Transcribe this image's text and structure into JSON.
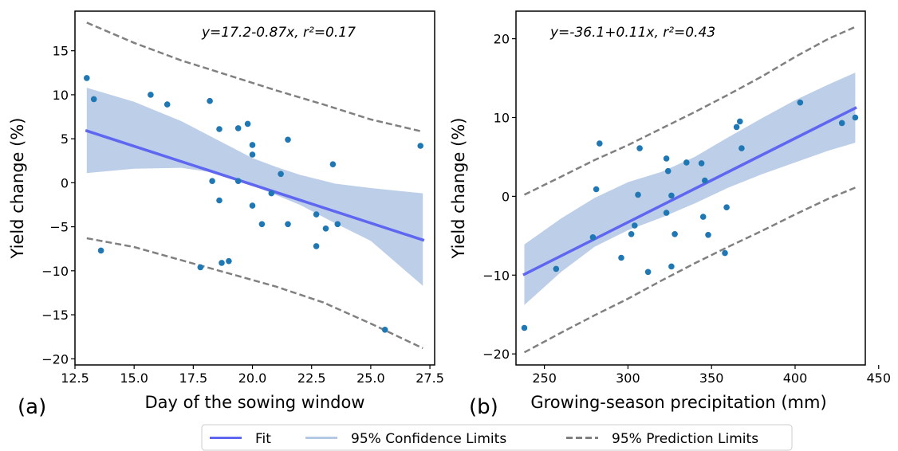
{
  "colors": {
    "fit": "#5f67f0",
    "ci_fill": "#b5c9e6",
    "pred": "#808080",
    "points": "#1f77b4",
    "axis": "#000000"
  },
  "legend": {
    "fit": "Fit",
    "confidence": "95% Confidence Limits",
    "prediction": "95% Prediction Limits"
  },
  "chart_data": [
    {
      "type": "scatter",
      "panel_label": "(a)",
      "equation": "y=17.2-0.87x, r²=0.17",
      "xlabel": "Day of the sowing window",
      "ylabel": "Yield change (%)",
      "xlim": [
        12.5,
        27.7
      ],
      "ylim": [
        -20.7,
        19.5
      ],
      "xticks": [
        12.5,
        15.0,
        17.5,
        20.0,
        22.5,
        25.0,
        27.5
      ],
      "xtick_labels": [
        "12.5",
        "15.0",
        "17.5",
        "20.0",
        "22.5",
        "25.0",
        "27.5"
      ],
      "yticks": [
        -20,
        -15,
        -10,
        -5,
        0,
        5,
        10,
        15
      ],
      "ytick_labels": [
        "−20",
        "−15",
        "−10",
        "−5",
        "0",
        "5",
        "10",
        "15"
      ],
      "fit": {
        "x": [
          13.0,
          27.2
        ],
        "y": [
          5.9,
          -6.5
        ]
      },
      "confidence": {
        "x": [
          13.0,
          15.0,
          17.0,
          18.5,
          20.0,
          21.0,
          22.0,
          23.5,
          25.0,
          27.2
        ],
        "upper": [
          10.8,
          9.2,
          7.0,
          4.9,
          2.8,
          1.8,
          0.9,
          -0.1,
          -0.6,
          -1.2
        ],
        "lower": [
          1.1,
          1.6,
          1.7,
          1.1,
          -0.3,
          -1.4,
          -2.5,
          -4.6,
          -6.6,
          -11.7
        ]
      },
      "prediction": {
        "x": [
          13.0,
          15.0,
          17.0,
          19.0,
          21.0,
          23.0,
          25.0,
          27.2
        ],
        "upper": [
          18.2,
          15.9,
          13.9,
          12.2,
          10.5,
          8.9,
          7.2,
          5.8
        ],
        "lower": [
          -6.3,
          -7.3,
          -8.8,
          -10.3,
          -11.8,
          -13.6,
          -16.0,
          -18.8
        ]
      },
      "points": [
        [
          13.0,
          11.9
        ],
        [
          13.3,
          9.5
        ],
        [
          13.6,
          -7.7
        ],
        [
          15.7,
          10.0
        ],
        [
          16.4,
          8.9
        ],
        [
          17.8,
          -9.6
        ],
        [
          18.2,
          9.3
        ],
        [
          18.3,
          0.2
        ],
        [
          18.6,
          6.1
        ],
        [
          18.6,
          -2.0
        ],
        [
          18.7,
          -9.1
        ],
        [
          19.0,
          -8.9
        ],
        [
          19.4,
          6.2
        ],
        [
          19.4,
          0.2
        ],
        [
          19.8,
          6.7
        ],
        [
          20.0,
          4.3
        ],
        [
          20.0,
          3.2
        ],
        [
          20.0,
          -2.6
        ],
        [
          20.4,
          -4.7
        ],
        [
          20.8,
          -1.2
        ],
        [
          21.2,
          1.0
        ],
        [
          21.5,
          4.9
        ],
        [
          21.5,
          -4.7
        ],
        [
          22.7,
          -3.6
        ],
        [
          22.7,
          -7.2
        ],
        [
          23.1,
          -5.2
        ],
        [
          23.4,
          2.1
        ],
        [
          23.6,
          -4.7
        ],
        [
          25.6,
          -16.7
        ],
        [
          27.1,
          4.2
        ]
      ]
    },
    {
      "type": "scatter",
      "panel_label": "(b)",
      "equation": "y=-36.1+0.11x, r²=0.43",
      "xlabel": "Growing-season precipitation (mm)",
      "ylabel": "Yield change (%)",
      "xlim": [
        233,
        442
      ],
      "ylim": [
        -21.4,
        23.5
      ],
      "xticks": [
        250,
        300,
        350,
        400,
        450
      ],
      "xtick_labels": [
        "250",
        "300",
        "350",
        "400",
        "450"
      ],
      "yticks": [
        -20,
        -10,
        0,
        10,
        20
      ],
      "ytick_labels": [
        "−20",
        "−10",
        "0",
        "10",
        "20"
      ],
      "fit": {
        "x": [
          238,
          436
        ],
        "y": [
          -9.9,
          11.2
        ]
      },
      "confidence": {
        "x": [
          238,
          260,
          280,
          300,
          320,
          340,
          360,
          380,
          400,
          420,
          436
        ],
        "upper": [
          -6.1,
          -2.8,
          -0.2,
          1.8,
          3.1,
          5.0,
          7.5,
          9.9,
          12.2,
          14.2,
          15.7
        ],
        "lower": [
          -13.8,
          -9.6,
          -6.4,
          -4.3,
          -2.7,
          -0.9,
          1.1,
          2.8,
          4.3,
          5.8,
          6.8
        ]
      },
      "prediction": {
        "x": [
          238,
          260,
          280,
          300,
          320,
          340,
          360,
          380,
          400,
          420,
          436
        ],
        "upper": [
          0.2,
          2.5,
          4.6,
          6.5,
          8.6,
          10.7,
          12.9,
          15.2,
          17.7,
          20.0,
          21.5
        ],
        "lower": [
          -19.8,
          -17.3,
          -15.1,
          -13.0,
          -10.7,
          -8.5,
          -6.4,
          -4.4,
          -2.3,
          -0.3,
          1.1
        ]
      },
      "points": [
        [
          238,
          -16.7
        ],
        [
          257,
          -9.2
        ],
        [
          279,
          -5.2
        ],
        [
          281,
          0.9
        ],
        [
          283,
          6.7
        ],
        [
          296,
          -7.8
        ],
        [
          302,
          -4.8
        ],
        [
          304,
          -3.7
        ],
        [
          306,
          0.2
        ],
        [
          307,
          6.1
        ],
        [
          312,
          -9.6
        ],
        [
          323,
          4.8
        ],
        [
          323,
          -2.1
        ],
        [
          324,
          3.2
        ],
        [
          326,
          0.1
        ],
        [
          326,
          -8.9
        ],
        [
          328,
          -4.8
        ],
        [
          335,
          4.3
        ],
        [
          344,
          4.2
        ],
        [
          345,
          -2.6
        ],
        [
          346,
          2.0
        ],
        [
          348,
          -4.9
        ],
        [
          358,
          -7.2
        ],
        [
          359,
          -1.4
        ],
        [
          365,
          8.8
        ],
        [
          367,
          9.5
        ],
        [
          368,
          6.1
        ],
        [
          403,
          11.9
        ],
        [
          428,
          9.3
        ],
        [
          436,
          10.0
        ]
      ]
    }
  ]
}
